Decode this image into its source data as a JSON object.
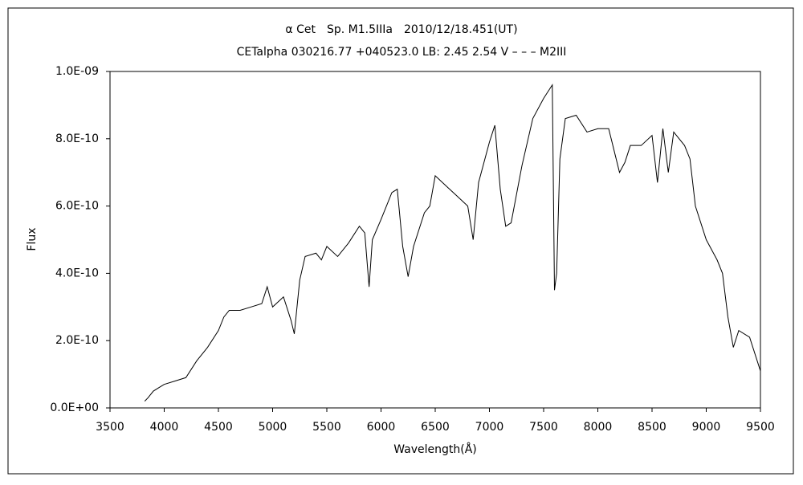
{
  "chart_data": {
    "type": "line",
    "title": "α Cet　Sp. M1.5IIIa　2010/12/18.451(UT)",
    "subtitle": "CETalpha 030216.77 +040523.0 LB: 2.45 2.54 V – – – M2III",
    "x_label": "Wavelength(Å)",
    "y_label": "Flux",
    "x": [
      3820,
      3850,
      3900,
      3950,
      4000,
      4100,
      4200,
      4300,
      4400,
      4500,
      4550,
      4600,
      4700,
      4800,
      4900,
      4950,
      5000,
      5100,
      5170,
      5200,
      5250,
      5300,
      5400,
      5450,
      5500,
      5600,
      5700,
      5800,
      5850,
      5890,
      5920,
      6000,
      6100,
      6150,
      6200,
      6250,
      6300,
      6400,
      6450,
      6500,
      6600,
      6700,
      6800,
      6850,
      6900,
      7000,
      7050,
      7100,
      7150,
      7200,
      7300,
      7400,
      7500,
      7580,
      7600,
      7620,
      7650,
      7700,
      7800,
      7900,
      8000,
      8100,
      8200,
      8250,
      8300,
      8400,
      8500,
      8550,
      8600,
      8650,
      8700,
      8800,
      8850,
      8900,
      9000,
      9100,
      9150,
      9200,
      9250,
      9300,
      9400,
      9500
    ],
    "series": [
      {
        "name": "Flux",
        "color": "#000000",
        "values": [
          2e-11,
          3e-11,
          5e-11,
          6e-11,
          7e-11,
          8e-11,
          9e-11,
          1.4e-10,
          1.8e-10,
          2.3e-10,
          2.7e-10,
          2.9e-10,
          2.9e-10,
          3e-10,
          3.1e-10,
          3.6e-10,
          3e-10,
          3.3e-10,
          2.6e-10,
          2.2e-10,
          3.8e-10,
          4.5e-10,
          4.6e-10,
          4.4e-10,
          4.8e-10,
          4.5e-10,
          4.9e-10,
          5.4e-10,
          5.2e-10,
          3.6e-10,
          5e-10,
          5.6e-10,
          6.4e-10,
          6.5e-10,
          4.8e-10,
          3.9e-10,
          4.8e-10,
          5.8e-10,
          6e-10,
          6.9e-10,
          6.6e-10,
          6.3e-10,
          6e-10,
          5e-10,
          6.7e-10,
          7.9e-10,
          8.4e-10,
          6.5e-10,
          5.4e-10,
          5.5e-10,
          7.2e-10,
          8.6e-10,
          9.2e-10,
          9.6e-10,
          3.5e-10,
          4e-10,
          7.4e-10,
          8.6e-10,
          8.7e-10,
          8.2e-10,
          8.3e-10,
          8.3e-10,
          7e-10,
          7.3e-10,
          7.8e-10,
          7.8e-10,
          8.1e-10,
          6.7e-10,
          8.3e-10,
          7e-10,
          8.2e-10,
          7.8e-10,
          7.4e-10,
          6e-10,
          5e-10,
          4.4e-10,
          4e-10,
          2.7e-10,
          1.8e-10,
          2.3e-10,
          2.1e-10,
          1.1e-10
        ]
      }
    ],
    "xlim": [
      3500,
      9500
    ],
    "xticks": [
      3500,
      4000,
      4500,
      5000,
      5500,
      6000,
      6500,
      7000,
      7500,
      8000,
      8500,
      9000,
      9500
    ],
    "ylim": [
      0,
      1e-09
    ],
    "yticks": [
      {
        "value": 0,
        "label": "0.0E+00"
      },
      {
        "value": 2e-10,
        "label": "2.0E-10"
      },
      {
        "value": 4e-10,
        "label": "4.0E-10"
      },
      {
        "value": 6e-10,
        "label": "6.0E-10"
      },
      {
        "value": 8e-10,
        "label": "8.0E-10"
      },
      {
        "value": 1e-09,
        "label": "1.0E-09"
      }
    ],
    "grid": false
  }
}
